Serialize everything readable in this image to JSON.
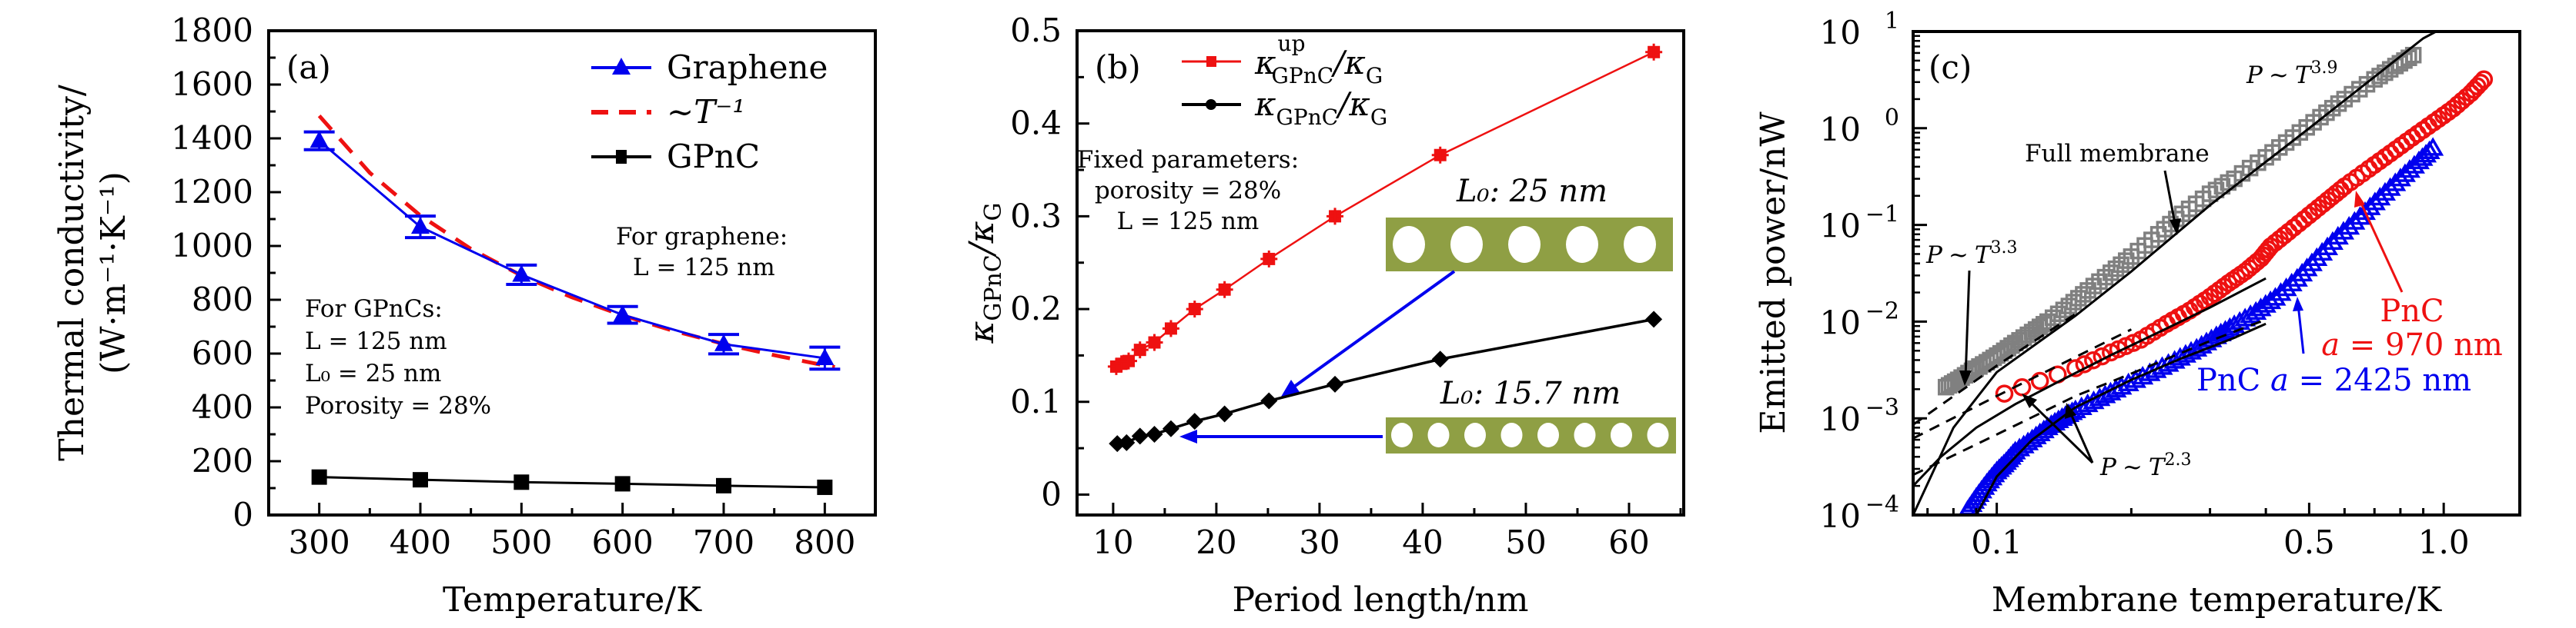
{
  "figure": {
    "colors": {
      "blue": "#0000ee",
      "red": "#ee1111",
      "black": "#000000",
      "gray": "#808080",
      "olive": "#8f9f44",
      "red_light": "#ff2a2a"
    }
  },
  "chart_data": [
    {
      "panel": "(a)",
      "type": "line",
      "xlabel": "Temperature/K",
      "ylabel_line1": "Thermal conductivity/",
      "ylabel_line2": "(W·m⁻¹·K⁻¹)",
      "xlim": [
        250,
        850
      ],
      "ylim": [
        0,
        1800
      ],
      "xticks": [
        300,
        400,
        500,
        600,
        700,
        800
      ],
      "yticks": [
        0,
        200,
        400,
        600,
        800,
        1000,
        1200,
        1400,
        1600,
        1800
      ],
      "grid": false,
      "legend_position": "top-right",
      "series": [
        {
          "name": "Graphene",
          "marker": "triangle",
          "style": "solid",
          "color": "#0000ee",
          "x": [
            300,
            400,
            500,
            600,
            700,
            800
          ],
          "y": [
            1391,
            1071,
            893,
            744,
            635,
            583
          ],
          "yerr": [
            33,
            40,
            36,
            31,
            36,
            41
          ]
        },
        {
          "name": "~T⁻¹",
          "marker": "none",
          "style": "dashed",
          "color": "#ee1111",
          "x": [
            300,
            350,
            400,
            450,
            500,
            550,
            600,
            650,
            700,
            750,
            800,
            810
          ],
          "y": [
            1484,
            1272,
            1113,
            989,
            890,
            809,
            742,
            685,
            636,
            594,
            556,
            550
          ]
        },
        {
          "name": "GPnC",
          "marker": "square",
          "style": "solid",
          "color": "#000000",
          "x": [
            300,
            400,
            500,
            600,
            700,
            800
          ],
          "y": [
            141,
            131,
            122,
            116,
            109,
            103
          ]
        }
      ],
      "annotations": {
        "graphene_title": "For graphene:",
        "graphene_L": "L = 125 nm",
        "gpnc_title": "For GPnCs:",
        "gpnc_L": "L = 125 nm",
        "gpnc_L0": "L₀ = 25 nm",
        "gpnc_porosity": "Porosity = 28%"
      }
    },
    {
      "panel": "(b)",
      "type": "line",
      "xlabel": "Period length/nm",
      "ylabel": "κGPnC/κG",
      "xlim": [
        6.5,
        65.3
      ],
      "ylim": [
        -0.022,
        0.5
      ],
      "xticks": [
        10,
        20,
        30,
        40,
        50,
        60
      ],
      "yticks": [
        0,
        0.1,
        0.2,
        0.3,
        0.4,
        0.5
      ],
      "ytick_labels": [
        "0",
        "0.1",
        "0.2",
        "0.3",
        "0.4",
        "0.5"
      ],
      "grid": false,
      "legend_position": "top-center",
      "series": [
        {
          "name": "κ^up_GPnC/κ_G",
          "legend_main": "κ",
          "legend_sup": "up",
          "legend_sub": "GPnC",
          "legend_tail": "/κ",
          "legend_tail_sub": "G",
          "marker": "square",
          "style": "solid",
          "color": "#ee1111",
          "x": [
            10.3,
            10.8,
            11.5,
            12.6,
            14.0,
            15.6,
            17.9,
            20.8,
            25.1,
            31.5,
            41.7,
            62.4
          ],
          "y": [
            0.138,
            0.141,
            0.144,
            0.156,
            0.164,
            0.179,
            0.2,
            0.221,
            0.254,
            0.3,
            0.366,
            0.477
          ]
        },
        {
          "name": "κ_GPnC/κ_G",
          "legend_main": "κ",
          "legend_sup": "",
          "legend_sub": "GPnC",
          "legend_tail": "/κ",
          "legend_tail_sub": "G",
          "marker": "diamond",
          "style": "solid",
          "color": "#000000",
          "x": [
            10.4,
            11.3,
            12.6,
            14.0,
            15.6,
            17.9,
            20.8,
            25.1,
            31.5,
            41.7,
            62.4
          ],
          "y": [
            0.055,
            0.056,
            0.063,
            0.065,
            0.071,
            0.079,
            0.087,
            0.101,
            0.119,
            0.146,
            0.189
          ]
        }
      ],
      "annotations": {
        "fixed_title": "Fixed parameters:",
        "fixed_porosity": "porosity = 28%",
        "fixed_L": "L = 125 nm",
        "inset_top_label": "L₀: 25 nm",
        "inset_top_holes": 5,
        "inset_bottom_label": "L₀: 15.7 nm",
        "inset_bottom_holes": 8
      }
    },
    {
      "panel": "(c)",
      "type": "scatter",
      "xscale": "log",
      "yscale": "log",
      "xlabel": "Membrane temperature/K",
      "ylabel": "Emitted power/nW",
      "xlim": [
        0.065,
        1.48
      ],
      "ylim": [
        0.0001,
        10
      ],
      "xticks": [
        0.1,
        0.5,
        1.0
      ],
      "xtick_labels": [
        "0.1",
        "0.5",
        "1.0"
      ],
      "yticks": [
        0.0001,
        0.001,
        0.01,
        0.1,
        1,
        10
      ],
      "ytick_exponents": [
        "−4",
        "−3",
        "−2",
        "−1",
        "0",
        "1"
      ],
      "grid": false,
      "series": [
        {
          "name": "Full membrane",
          "marker": "open-square",
          "color": "#808080",
          "x": [
            0.077,
            0.082,
            0.088,
            0.095,
            0.102,
            0.11,
            0.12,
            0.13,
            0.145,
            0.16,
            0.18,
            0.2,
            0.23,
            0.26,
            0.3,
            0.34,
            0.4,
            0.46,
            0.53,
            0.6,
            0.7,
            0.78,
            0.855
          ],
          "y": [
            0.0021,
            0.0025,
            0.0031,
            0.0038,
            0.0047,
            0.006,
            0.0078,
            0.01,
            0.0145,
            0.021,
            0.032,
            0.047,
            0.08,
            0.13,
            0.21,
            0.3,
            0.5,
            0.8,
            1.3,
            2.0,
            3.2,
            4.4,
            5.7
          ]
        },
        {
          "name": "PnC a = 970 nm",
          "marker": "open-circle",
          "color": "#ee1111",
          "x": [
            0.104,
            0.15,
            0.18,
            0.21,
            0.24,
            0.27,
            0.3,
            0.33,
            0.36,
            0.39,
            0.41,
            0.45,
            0.5,
            0.55,
            0.6,
            0.68,
            0.76,
            0.85,
            0.95,
            1.05,
            1.15,
            1.23
          ],
          "y": [
            0.0018,
            0.0033,
            0.0048,
            0.0065,
            0.0095,
            0.013,
            0.018,
            0.025,
            0.033,
            0.045,
            0.06,
            0.085,
            0.126,
            0.18,
            0.25,
            0.38,
            0.55,
            0.8,
            1.15,
            1.6,
            2.3,
            3.2
          ]
        },
        {
          "name": "PnC a = 2425 nm",
          "marker": "open-triangle",
          "color": "#0000ee",
          "x": [
            0.086,
            0.09,
            0.095,
            0.1,
            0.105,
            0.11,
            0.12,
            0.13,
            0.14,
            0.15,
            0.17,
            0.19,
            0.22,
            0.25,
            0.28,
            0.31,
            0.34,
            0.38,
            0.42,
            0.47,
            0.52,
            0.58,
            0.65,
            0.72,
            0.8,
            0.88,
            0.946
          ],
          "y": [
            0.00011,
            0.00015,
            0.00021,
            0.00028,
            0.00035,
            0.00045,
            0.0006,
            0.0008,
            0.001,
            0.0012,
            0.0016,
            0.0021,
            0.0029,
            0.0039,
            0.0052,
            0.007,
            0.0091,
            0.0125,
            0.0175,
            0.0275,
            0.045,
            0.075,
            0.12,
            0.19,
            0.3,
            0.45,
            0.62
          ]
        }
      ],
      "fits": [
        {
          "label": "P ~ T^3.9",
          "style": "solid",
          "x": [
            0.065,
            0.08,
            0.1,
            0.15,
            0.2,
            0.3,
            0.5,
            0.7,
            0.9,
            1.0
          ],
          "y": [
            0.0001,
            0.0008,
            0.003,
            0.0115,
            0.033,
            0.16,
            1.0,
            3.4,
            8.5,
            11
          ]
        },
        {
          "label": "P ~ T^3.3",
          "style": "dashed",
          "x": [
            0.065,
            0.1,
            0.15
          ],
          "y": [
            0.00086,
            0.0035,
            0.012
          ]
        },
        {
          "label": "red-fit-solid",
          "style": "solid",
          "x": [
            0.065,
            0.075,
            0.09,
            0.11,
            0.14,
            0.18,
            0.24,
            0.3,
            0.4
          ],
          "y": [
            0.0002,
            0.0004,
            0.0008,
            0.0014,
            0.0025,
            0.0045,
            0.0085,
            0.014,
            0.028
          ]
        },
        {
          "label": "red-fit-dashed",
          "style": "dashed",
          "x": [
            0.065,
            0.1,
            0.15,
            0.2
          ],
          "y": [
            0.00062,
            0.0017,
            0.0043,
            0.0083
          ]
        },
        {
          "label": "blue-fit-solid",
          "style": "solid",
          "x": [
            0.09,
            0.1,
            0.12,
            0.15,
            0.2,
            0.26,
            0.34,
            0.4
          ],
          "y": [
            0.0001,
            0.00025,
            0.0006,
            0.0013,
            0.0025,
            0.0042,
            0.0068,
            0.0095
          ]
        },
        {
          "label": "blue-fit-dashed",
          "style": "dashed",
          "x": [
            0.065,
            0.1,
            0.15,
            0.2,
            0.3,
            0.4
          ],
          "y": [
            0.00026,
            0.00068,
            0.0017,
            0.0029,
            0.0063,
            0.0105
          ]
        }
      ],
      "annotations": {
        "t39_P": "P",
        "t39_sim": "~",
        "t39_T": "T",
        "t39_exp": "3.9",
        "t33_exp": "3.3",
        "t23_exp": "2.3",
        "full_membrane": "Full membrane",
        "pnc970_line1": "PnC",
        "pnc970_line2_a": "a",
        "pnc970_line2_rest": " = 970 nm",
        "pnc2425_pre": "PnC ",
        "pnc2425_a": "a",
        "pnc2425_rest": " = 2425 nm"
      }
    }
  ]
}
